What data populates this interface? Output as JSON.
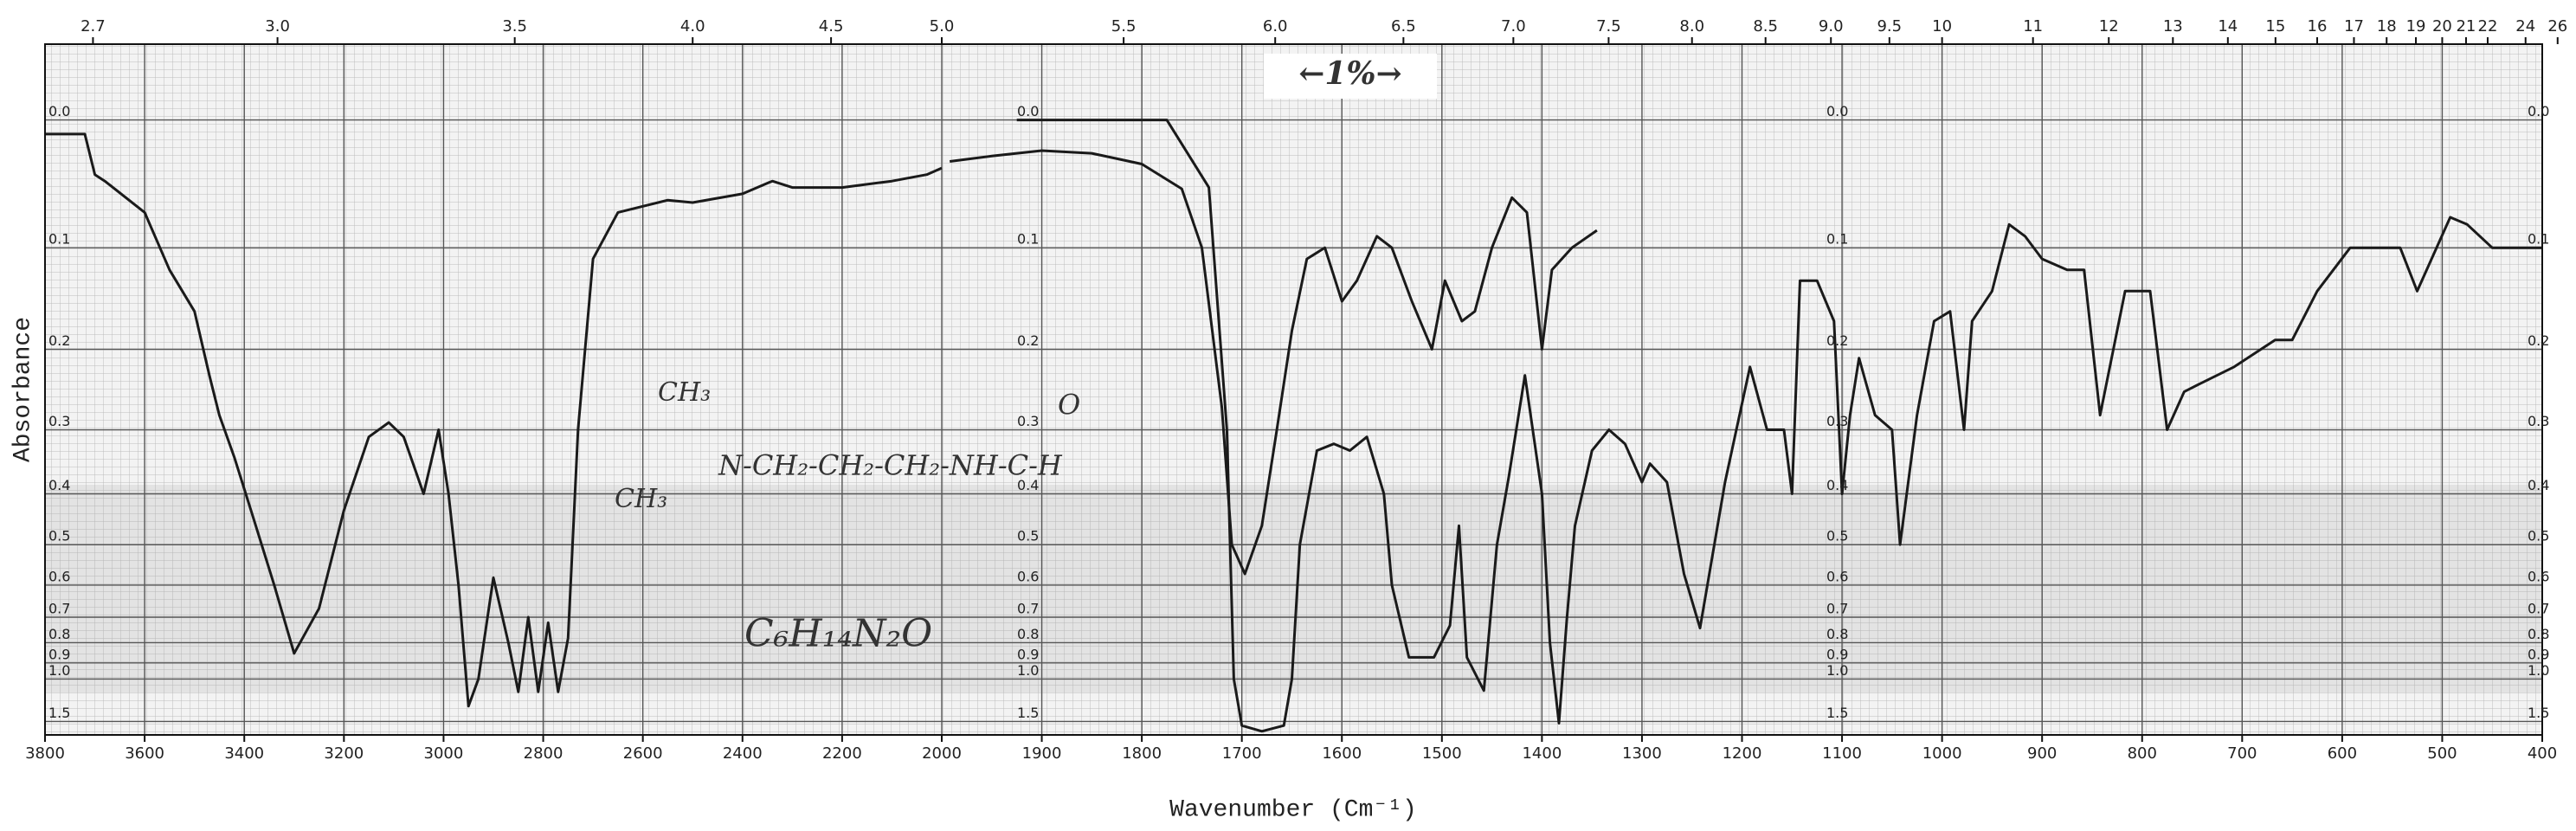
{
  "chart_data": {
    "type": "line",
    "xlabel": "Wavenumber (Cm⁻¹)",
    "ylabel": "Absorbance",
    "annotations": [
      "←1%→",
      "CH₃",
      "N-CH₂-CH₂-CH₂-NH-C-H",
      "O",
      "CH₃",
      "C₆H₁₄N₂O"
    ],
    "xlim": [
      3800,
      400
    ],
    "xbreak": 2000,
    "xticks": [
      3800,
      3600,
      3400,
      3200,
      3000,
      2800,
      2600,
      2400,
      2200,
      2000,
      1900,
      1800,
      1700,
      1600,
      1500,
      1400,
      1300,
      1200,
      1100,
      1000,
      900,
      800,
      700,
      600,
      500,
      400
    ],
    "x2ticks": [
      2.7,
      {
        "value": 3,
        "label": "3.0"
      },
      3.5,
      {
        "value": 4,
        "label": "4.0"
      },
      4.5,
      {
        "value": 5,
        "label": "5.0"
      },
      5.5,
      {
        "value": 6,
        "label": "6.0"
      },
      6.5,
      {
        "value": 7,
        "label": "7.0"
      },
      7.5,
      {
        "value": 8,
        "label": "8.0"
      },
      8.5,
      {
        "value": 9,
        "label": "9.0"
      },
      9.5,
      10,
      11,
      12,
      13,
      14,
      15,
      16,
      17,
      18,
      19,
      20,
      21,
      22,
      24,
      26
    ],
    "ylim": [
      -0.05,
      2
    ],
    "yscale": "transmittance",
    "yticks": [
      {
        "value": 0,
        "label": "0.0"
      },
      0.1,
      0.2,
      0.3,
      0.4,
      0.5,
      0.6,
      0.7,
      0.8,
      0.9,
      {
        "value": 1,
        "label": "1.0"
      },
      1.5
    ],
    "grid": true,
    "series": [
      {
        "color": "#1a1a1a",
        "x": [
          3800,
          3720,
          3700,
          3680,
          3600,
          3550,
          3500,
          3470,
          3450,
          3420,
          3380,
          3340,
          3300,
          3250,
          3200,
          3150,
          3110,
          3080,
          3040,
          3010,
          2990,
          2970,
          2950,
          2930,
          2900,
          2870,
          2850,
          2830,
          2810,
          2790,
          2770,
          2750,
          2730,
          2700,
          2650,
          2600,
          2550,
          2500,
          2400,
          2340,
          2300,
          2200,
          2100,
          2030,
          2000
        ],
        "values": [
          0.01,
          0.01,
          0.04,
          0.045,
          0.07,
          0.12,
          0.16,
          0.23,
          0.28,
          0.34,
          0.45,
          0.6,
          0.85,
          0.67,
          0.43,
          0.31,
          0.29,
          0.31,
          0.4,
          0.3,
          0.4,
          0.6,
          1.25,
          1.0,
          0.58,
          0.8,
          1.1,
          0.7,
          1.1,
          0.72,
          1.1,
          0.78,
          0.3,
          0.11,
          0.07,
          0.065,
          0.06,
          0.062,
          0.055,
          0.045,
          0.05,
          0.05,
          0.045,
          0.04,
          0.035
        ]
      },
      {
        "color": "#1a1a1a",
        "x": [
          1992,
          1950,
          1900,
          1850,
          1800,
          1760,
          1740,
          1720,
          1710,
          1697,
          1680,
          1665,
          1650,
          1635,
          1617,
          1600,
          1585,
          1565,
          1550,
          1530,
          1510,
          1497,
          1480,
          1467,
          1450,
          1430,
          1415,
          1400,
          1390,
          1370,
          1345
        ],
        "values": [
          0.03,
          0.026,
          0.022,
          0.024,
          0.032,
          0.051,
          0.1,
          0.27,
          0.5,
          0.57,
          0.46,
          0.3,
          0.18,
          0.11,
          0.1,
          0.15,
          0.13,
          0.09,
          0.1,
          0.15,
          0.2,
          0.13,
          0.17,
          0.16,
          0.1,
          0.058,
          0.07,
          0.2,
          0.12,
          0.1,
          0.085
        ]
      },
      {
        "color": "#1a1a1a",
        "x": [
          1925,
          1775,
          1733,
          1715,
          1708,
          1700,
          1680,
          1658,
          1650,
          1642,
          1625,
          1608,
          1592,
          1575,
          1558,
          1550,
          1533,
          1508,
          1492,
          1483,
          1475,
          1458,
          1445,
          1433,
          1417,
          1400,
          1392,
          1383,
          1375,
          1367,
          1350,
          1333,
          1317,
          1300,
          1292,
          1275,
          1258,
          1242,
          1217,
          1192,
          1175,
          1158,
          1150,
          1142,
          1125,
          1108,
          1100,
          1092,
          1083,
          1067,
          1050,
          1042,
          1025,
          1008,
          992,
          978,
          970,
          950,
          933,
          917,
          900,
          875,
          858,
          842,
          817,
          792,
          775,
          758,
          742,
          708,
          667,
          650,
          625,
          592,
          575,
          542,
          525,
          492,
          475,
          450,
          433,
          417,
          400
        ],
        "values": [
          0.0,
          0.0,
          0.05,
          0.3,
          1.0,
          1.6,
          1.8,
          1.6,
          1.0,
          0.5,
          0.33,
          0.32,
          0.33,
          0.31,
          0.4,
          0.6,
          0.87,
          0.87,
          0.73,
          0.46,
          0.87,
          1.09,
          0.5,
          0.37,
          0.23,
          0.4,
          0.8,
          1.54,
          0.7,
          0.46,
          0.33,
          0.3,
          0.32,
          0.38,
          0.35,
          0.38,
          0.57,
          0.74,
          0.38,
          0.22,
          0.3,
          0.3,
          0.4,
          0.13,
          0.13,
          0.17,
          0.4,
          0.28,
          0.21,
          0.28,
          0.3,
          0.5,
          0.28,
          0.17,
          0.16,
          0.3,
          0.17,
          0.14,
          0.08,
          0.09,
          0.11,
          0.12,
          0.12,
          0.28,
          0.14,
          0.14,
          0.3,
          0.25,
          0.24,
          0.22,
          0.19,
          0.19,
          0.14,
          0.1,
          0.1,
          0.1,
          0.14,
          0.074,
          0.08,
          0.1,
          0.1,
          0.1,
          0.1
        ]
      }
    ]
  }
}
